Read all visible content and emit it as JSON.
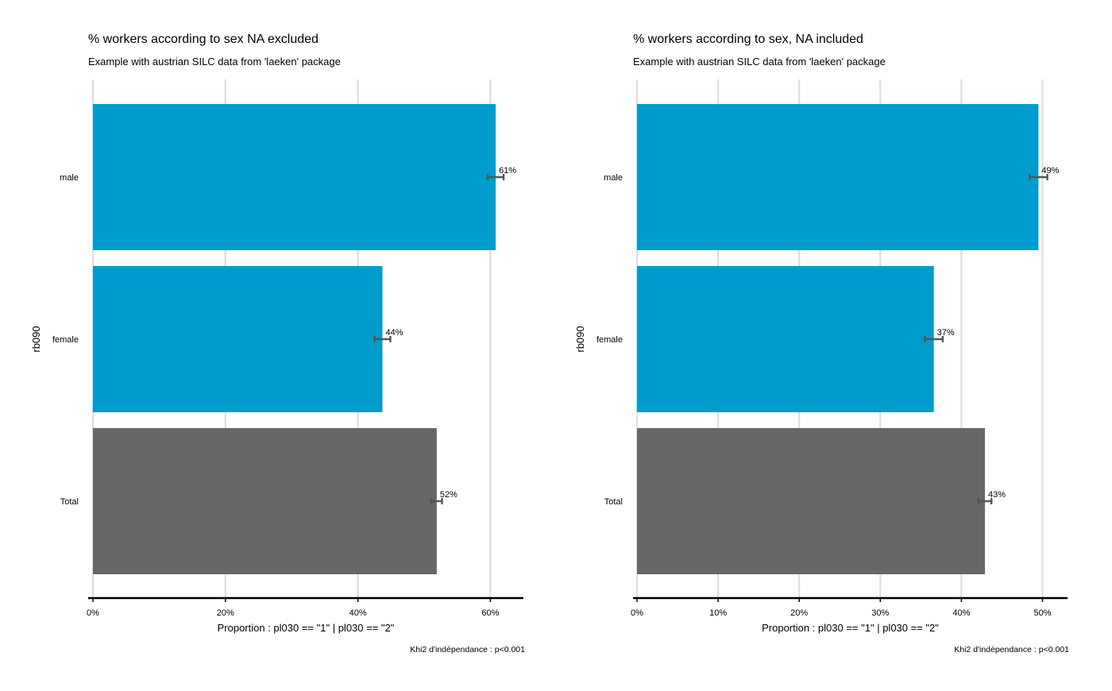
{
  "chart_data": [
    {
      "type": "bar",
      "orientation": "horizontal",
      "title": "% workers according to sex NA excluded",
      "subtitle": "Example with austrian SILC data from 'laeken' package",
      "xlabel": "Proportion : pl030 == \"1\" | pl030 == \"2\"",
      "ylabel": "rb090",
      "caption": "Khi2 d'indépendance : p<0.001",
      "categories": [
        "male",
        "female",
        "Total"
      ],
      "values": [
        60.8,
        43.7,
        51.9
      ],
      "errors": [
        [
          59.6,
          62.0
        ],
        [
          42.5,
          44.9
        ],
        [
          51.1,
          52.7
        ]
      ],
      "labels": [
        "61%",
        "44%",
        "52%"
      ],
      "colors": [
        "#009CCD",
        "#009CCD",
        "#676767"
      ],
      "xticks": [
        0,
        20,
        40,
        60
      ],
      "xtick_labels": [
        "0%",
        "20%",
        "40%",
        "60%"
      ],
      "xlim": [
        0,
        65
      ],
      "grid": "vertical"
    },
    {
      "type": "bar",
      "orientation": "horizontal",
      "title": "% workers according to sex, NA included",
      "subtitle": "Example with austrian SILC data from 'laeken' package",
      "xlabel": "Proportion : pl030 == \"1\" | pl030 == \"2\"",
      "ylabel": "rb090",
      "caption": "Khi2 d'indépendance : p<0.001",
      "categories": [
        "male",
        "female",
        "Total"
      ],
      "values": [
        49.5,
        36.6,
        42.9
      ],
      "errors": [
        [
          48.4,
          50.6
        ],
        [
          35.5,
          37.7
        ],
        [
          42.1,
          43.7
        ]
      ],
      "labels": [
        "49%",
        "37%",
        "43%"
      ],
      "colors": [
        "#009CCD",
        "#009CCD",
        "#676767"
      ],
      "xticks": [
        0,
        10,
        20,
        30,
        40,
        50
      ],
      "xtick_labels": [
        "0%",
        "10%",
        "20%",
        "30%",
        "40%",
        "50%"
      ],
      "xlim": [
        0,
        53.5
      ],
      "grid": "vertical"
    }
  ]
}
